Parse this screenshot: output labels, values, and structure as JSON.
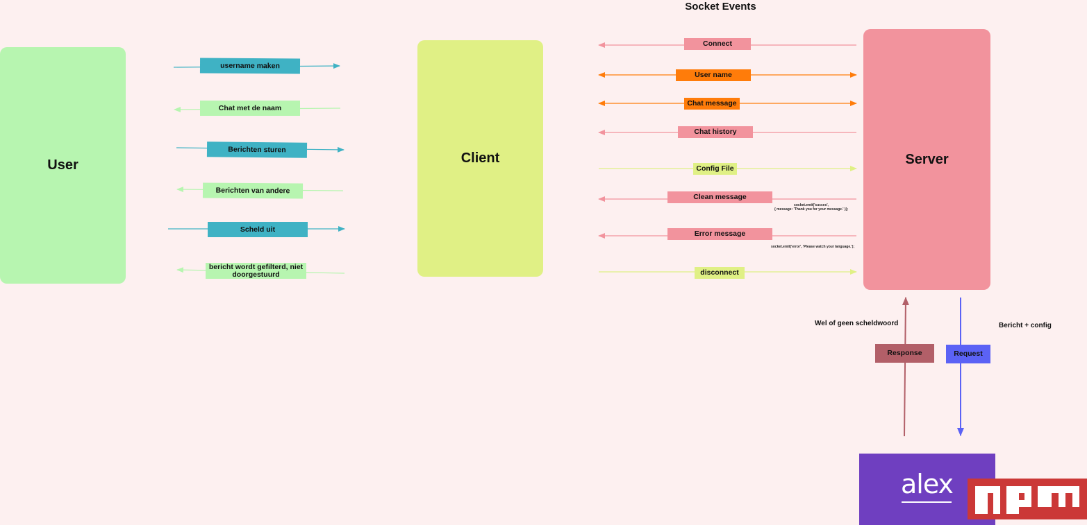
{
  "title": "Socket Events",
  "nodes": {
    "user": "User",
    "client": "Client",
    "server": "Server"
  },
  "user_client_events": [
    "username maken",
    "Chat met de naam",
    "Berichten sturen",
    "Berichten van andere",
    "Scheld uit",
    "bericht wordt gefilterd, niet doorgestuurd"
  ],
  "socket_events": [
    "Connect",
    "User name",
    "Chat message",
    "Chat history",
    "Config File",
    "Clean message",
    "Error message",
    "disconnect"
  ],
  "code_snippets": {
    "success_line1": "socket.emit('succes',",
    "success_line2": "{ message: 'Thank you for your message.' });",
    "error": "socket.emit('error', 'Please watch your language.');"
  },
  "api": {
    "response_label": "Response",
    "request_label": "Request",
    "response_note": "Wel of geen scheldwoord",
    "request_note": "Bericht + config"
  },
  "logos": {
    "alex": "alex",
    "npm": "npm"
  },
  "colors": {
    "user": "#b7f5b0",
    "client": "#e0f085",
    "server": "#f2939d",
    "teal": "#3fb2c4",
    "light_green": "#b7f5b0",
    "pink": "#f2939d",
    "orange": "#ff7c0a",
    "yellow": "#e0f085",
    "response": "#b25f68",
    "request": "#5b62f5",
    "alex_bg": "#6f3fc0",
    "npm_red": "#cb3837"
  }
}
